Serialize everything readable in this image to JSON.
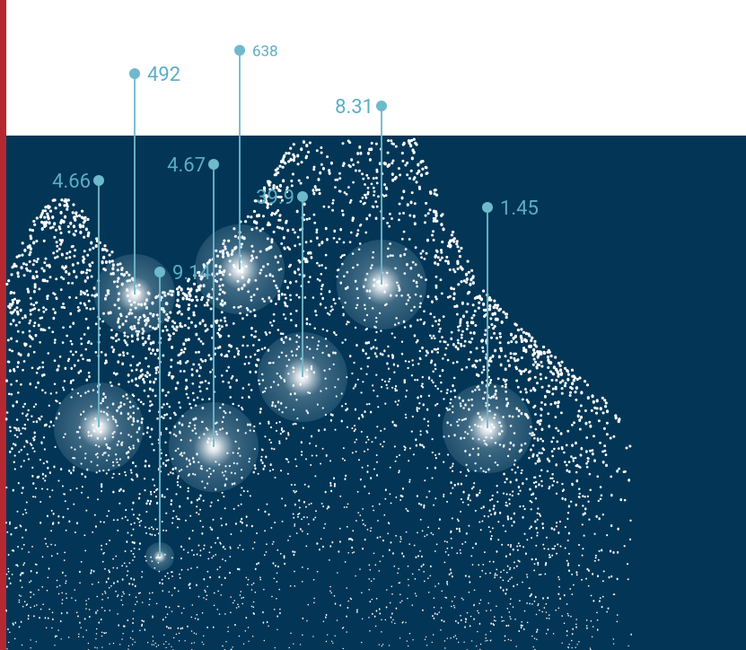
{
  "pins": [
    {
      "label": "492"
    },
    {
      "label": "638"
    },
    {
      "label": "8.31"
    },
    {
      "label": "4.66"
    },
    {
      "label": "4.67"
    },
    {
      "label": "39.9"
    },
    {
      "label": "1.45"
    },
    {
      "label": "9.14"
    }
  ]
}
